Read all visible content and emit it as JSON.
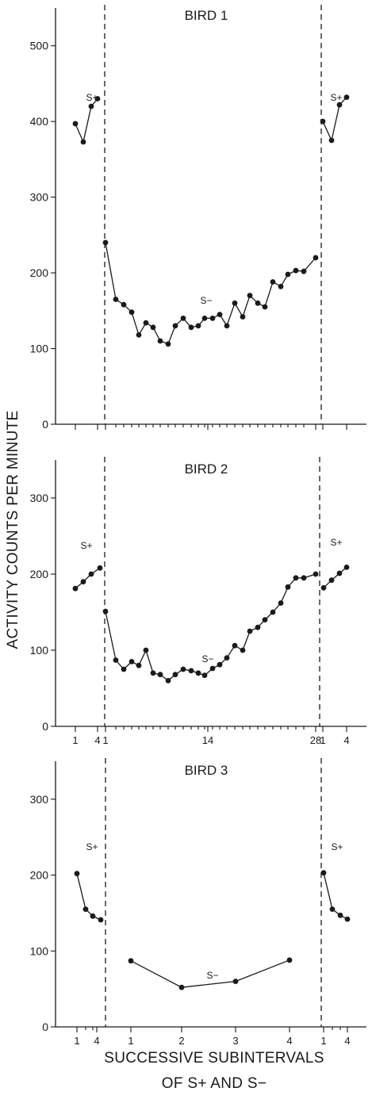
{
  "figure": {
    "ylabel": "ACTIVITY COUNTS PER MINUTE",
    "xlabel_line1": "SUCCESSIVE SUBINTERVALS",
    "xlabel_line2": "OF S+ AND S−"
  },
  "chart_data": [
    {
      "type": "line",
      "title": "BIRD 1",
      "ylabel": "ACTIVITY COUNTS PER MINUTE",
      "ylim": [
        0,
        550
      ],
      "yticks": [
        0,
        100,
        200,
        300,
        400,
        500
      ],
      "xtick_labels": [],
      "grid": false,
      "segments": [
        {
          "name": "S+",
          "label": "S+",
          "period": "S+ (before)",
          "x": [
            1,
            2,
            3,
            4
          ],
          "values": [
            397,
            373,
            420,
            430
          ]
        },
        {
          "name": "S−",
          "label": "S−",
          "period": "S−",
          "x": [
            1,
            2,
            3,
            4,
            5,
            6,
            7,
            8,
            9,
            10,
            11,
            12,
            13,
            14,
            15,
            16,
            17,
            18,
            19,
            20,
            21,
            22,
            23,
            24,
            25,
            26,
            27,
            28
          ],
          "values": [
            240,
            165,
            158,
            148,
            118,
            134,
            128,
            110,
            106,
            130,
            140,
            128,
            130,
            140,
            140,
            145,
            130,
            160,
            142,
            170,
            160,
            155,
            188,
            182,
            198,
            203,
            202,
            220
          ]
        },
        {
          "name": "S+",
          "label": "S+",
          "period": "S+ (after)",
          "x": [
            1,
            2,
            3,
            4
          ],
          "values": [
            400,
            375,
            422,
            432
          ]
        }
      ]
    },
    {
      "type": "line",
      "title": "BIRD 2",
      "ylabel": "ACTIVITY COUNTS PER MINUTE",
      "ylim": [
        0,
        350
      ],
      "yticks": [
        0,
        100,
        200,
        300
      ],
      "xtick_labels": [
        "1",
        "4",
        "1",
        "14",
        "28",
        "1",
        "4"
      ],
      "grid": false,
      "segments": [
        {
          "name": "S+",
          "label": "S+",
          "period": "S+ (before)",
          "x": [
            1,
            2,
            3,
            4
          ],
          "values": [
            181,
            190,
            200,
            208
          ]
        },
        {
          "name": "S−",
          "label": "S−",
          "period": "S−",
          "x": [
            1,
            2,
            3,
            4,
            5,
            6,
            7,
            8,
            9,
            10,
            11,
            12,
            13,
            14,
            15,
            16,
            17,
            18,
            19,
            20,
            21,
            22,
            23,
            24,
            25,
            26,
            27,
            28
          ],
          "values": [
            151,
            87,
            75,
            85,
            80,
            100,
            70,
            68,
            60,
            68,
            75,
            73,
            70,
            67,
            76,
            81,
            90,
            106,
            100,
            125,
            130,
            140,
            150,
            162,
            183,
            195,
            195,
            200
          ]
        },
        {
          "name": "S+",
          "label": "S+",
          "period": "S+ (after)",
          "x": [
            1,
            2,
            3,
            4
          ],
          "values": [
            182,
            192,
            201,
            209
          ]
        }
      ]
    },
    {
      "type": "line",
      "title": "BIRD 3",
      "ylabel": "ACTIVITY COUNTS PER MINUTE",
      "ylim": [
        0,
        350
      ],
      "yticks": [
        0,
        100,
        200,
        300
      ],
      "xtick_labels": [
        "1",
        "4",
        "1",
        "2",
        "3",
        "4",
        "1",
        "4"
      ],
      "grid": false,
      "segments": [
        {
          "name": "S+",
          "label": "S+",
          "period": "S+ (before)",
          "x": [
            1,
            2,
            3,
            4
          ],
          "values": [
            202,
            155,
            146,
            141
          ]
        },
        {
          "name": "S−",
          "label": "S−",
          "period": "S−",
          "x": [
            1,
            2,
            3,
            4
          ],
          "values": [
            87,
            52,
            60,
            88
          ]
        },
        {
          "name": "S+",
          "label": "S+",
          "period": "S+ (after)",
          "x": [
            1,
            2,
            3,
            4
          ],
          "values": [
            203,
            155,
            147,
            142
          ]
        }
      ]
    }
  ]
}
